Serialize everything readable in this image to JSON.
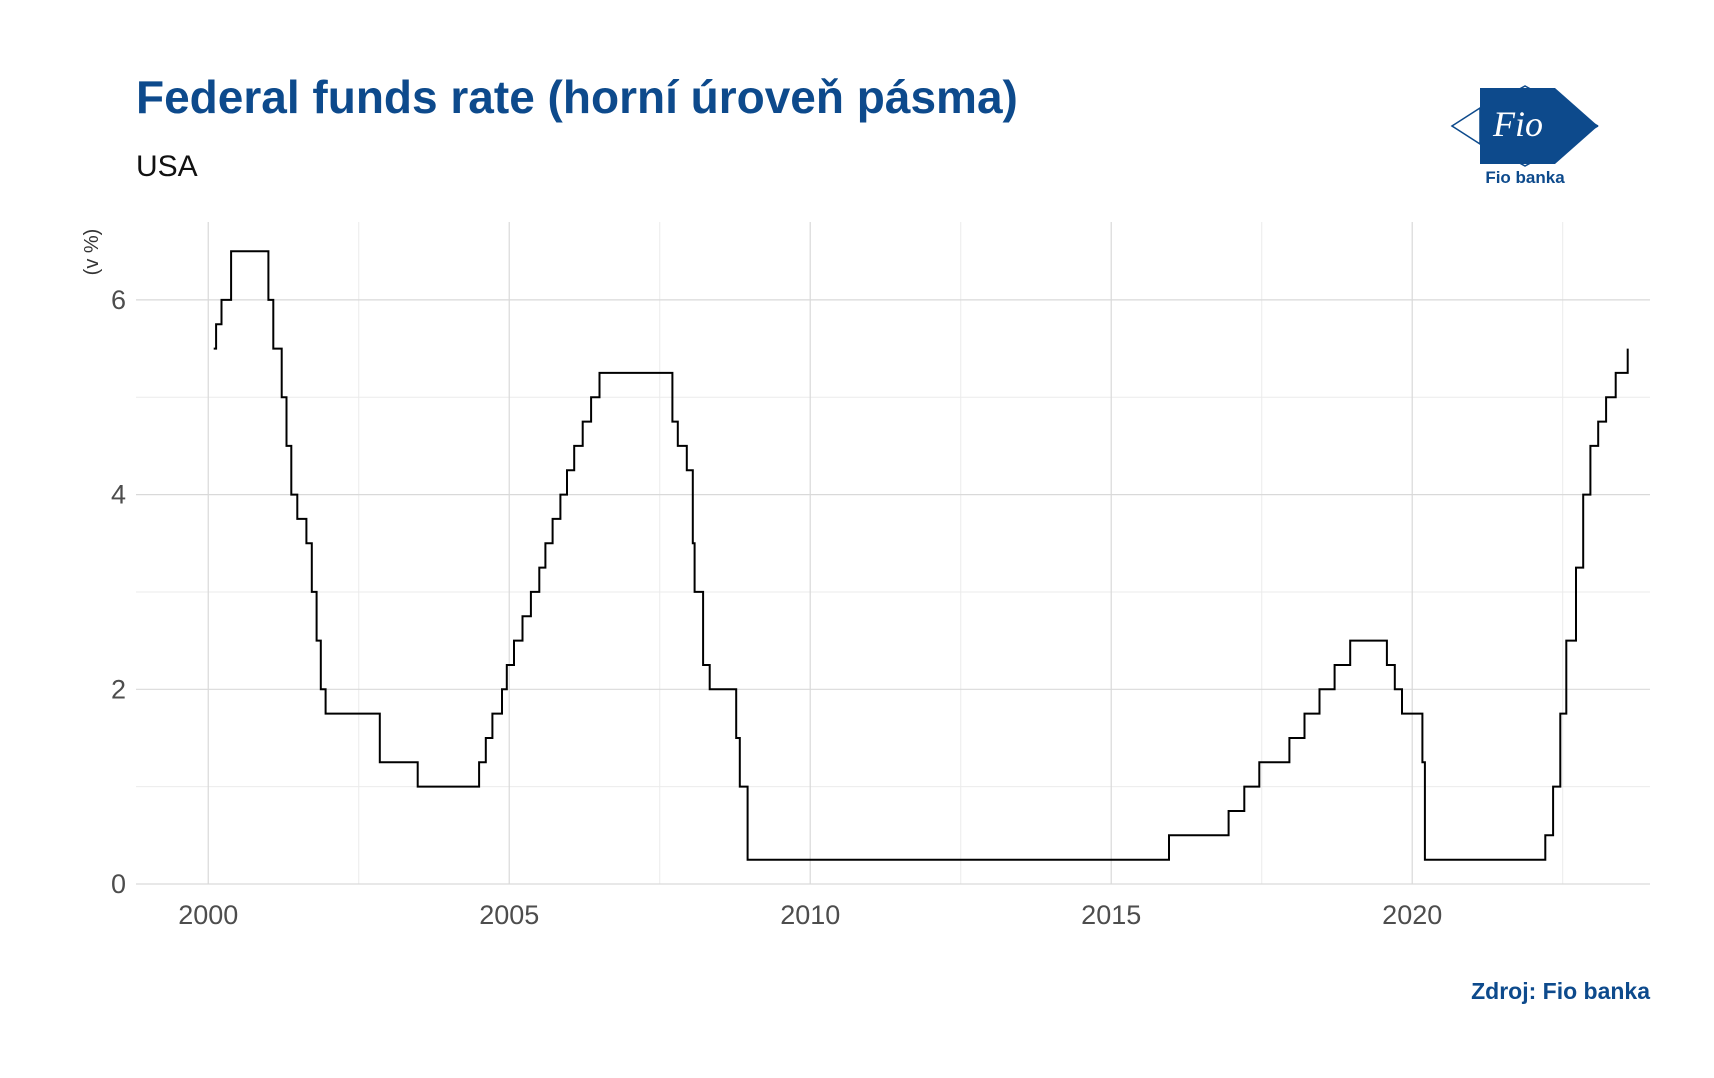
{
  "header": {
    "title": "Federal funds rate (horní úroveň pásma)",
    "subtitle": "USA"
  },
  "logo": {
    "mark_text": "Fio",
    "name": "Fio banka",
    "color": "#0d4a8c"
  },
  "footer": {
    "source": "Zdroj: Fio banka"
  },
  "chart_data": {
    "type": "line",
    "title": "Federal funds rate (horní úroveň pásma)",
    "subtitle": "USA",
    "ylabel": "(v %)",
    "xlabel": "",
    "xlim": [
      1998.8,
      2023.95
    ],
    "ylim": [
      0,
      6.8
    ],
    "x_ticks": [
      2000,
      2005,
      2010,
      2015,
      2020
    ],
    "x_tick_labels": [
      "2000",
      "2005",
      "2010",
      "2015",
      "2020"
    ],
    "y_ticks": [
      0,
      2,
      4,
      6
    ],
    "y_tick_labels": [
      "0",
      "2",
      "4",
      "6"
    ],
    "grid": true,
    "line_color": "#000000",
    "series": [
      {
        "step": true,
        "points": [
          [
            2000.09,
            5.5
          ],
          [
            2000.13,
            5.75
          ],
          [
            2000.22,
            6.0
          ],
          [
            2000.38,
            6.5
          ],
          [
            2001.0,
            6.0
          ],
          [
            2001.08,
            5.5
          ],
          [
            2001.22,
            5.0
          ],
          [
            2001.3,
            4.5
          ],
          [
            2001.38,
            4.0
          ],
          [
            2001.48,
            3.75
          ],
          [
            2001.63,
            3.5
          ],
          [
            2001.72,
            3.0
          ],
          [
            2001.8,
            2.5
          ],
          [
            2001.87,
            2.0
          ],
          [
            2001.95,
            1.75
          ],
          [
            2002.85,
            1.25
          ],
          [
            2003.48,
            1.0
          ],
          [
            2004.5,
            1.25
          ],
          [
            2004.61,
            1.5
          ],
          [
            2004.72,
            1.75
          ],
          [
            2004.88,
            2.0
          ],
          [
            2004.96,
            2.25
          ],
          [
            2005.08,
            2.5
          ],
          [
            2005.22,
            2.75
          ],
          [
            2005.36,
            3.0
          ],
          [
            2005.5,
            3.25
          ],
          [
            2005.6,
            3.5
          ],
          [
            2005.72,
            3.75
          ],
          [
            2005.85,
            4.0
          ],
          [
            2005.96,
            4.25
          ],
          [
            2006.08,
            4.5
          ],
          [
            2006.22,
            4.75
          ],
          [
            2006.36,
            5.0
          ],
          [
            2006.5,
            5.25
          ],
          [
            2007.71,
            4.75
          ],
          [
            2007.8,
            4.5
          ],
          [
            2007.95,
            4.25
          ],
          [
            2008.05,
            3.5
          ],
          [
            2008.08,
            3.0
          ],
          [
            2008.22,
            2.25
          ],
          [
            2008.33,
            2.0
          ],
          [
            2008.77,
            1.5
          ],
          [
            2008.83,
            1.0
          ],
          [
            2008.96,
            0.25
          ],
          [
            2015.96,
            0.5
          ],
          [
            2016.95,
            0.75
          ],
          [
            2017.21,
            1.0
          ],
          [
            2017.46,
            1.25
          ],
          [
            2017.96,
            1.5
          ],
          [
            2018.21,
            1.75
          ],
          [
            2018.46,
            2.0
          ],
          [
            2018.71,
            2.25
          ],
          [
            2018.97,
            2.5
          ],
          [
            2019.58,
            2.25
          ],
          [
            2019.71,
            2.0
          ],
          [
            2019.83,
            1.75
          ],
          [
            2020.17,
            1.25
          ],
          [
            2020.21,
            0.25
          ],
          [
            2022.21,
            0.5
          ],
          [
            2022.34,
            1.0
          ],
          [
            2022.46,
            1.75
          ],
          [
            2022.56,
            2.5
          ],
          [
            2022.72,
            3.25
          ],
          [
            2022.84,
            4.0
          ],
          [
            2022.96,
            4.5
          ],
          [
            2023.09,
            4.75
          ],
          [
            2023.22,
            5.0
          ],
          [
            2023.38,
            5.25
          ],
          [
            2023.58,
            5.5
          ]
        ],
        "end_x": 2023.58
      }
    ]
  }
}
